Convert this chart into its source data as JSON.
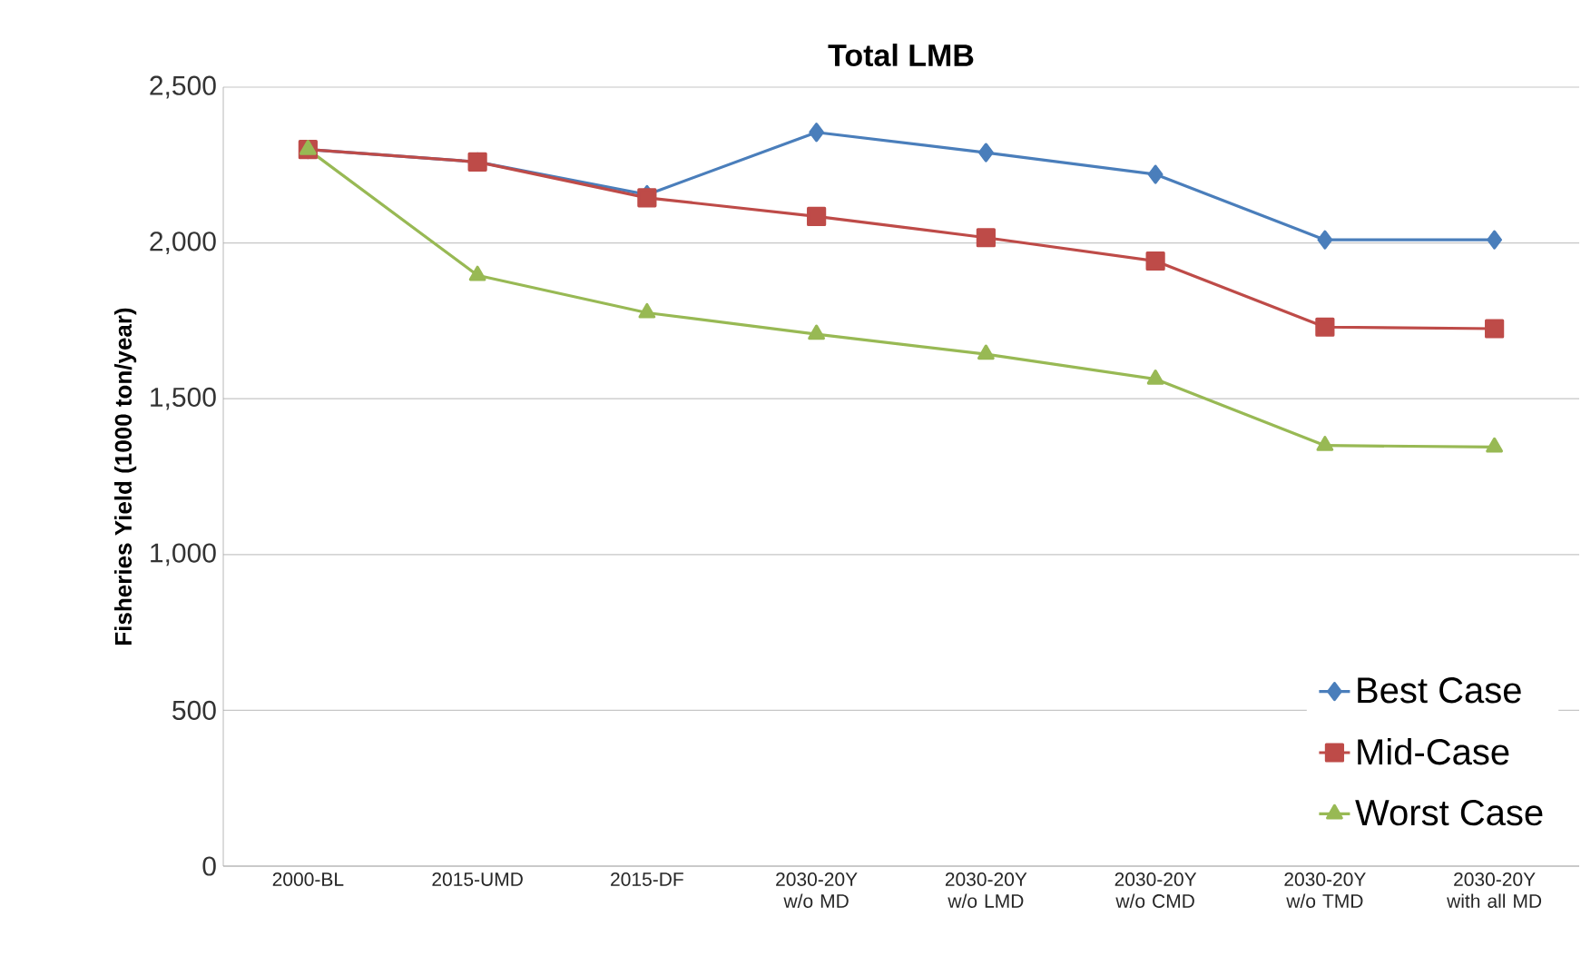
{
  "chart_data": {
    "type": "line",
    "title": "Total LMB",
    "ylabel": "Fisheries Yield (1000 ton/year)",
    "categories": [
      "2000-BL",
      "2015-UMD",
      "2015-DF",
      "2030-20Y w/o MD",
      "2030-20Y w/o LMD",
      "2030-20Y w/o CMD",
      "2030-20Y w/o TMD",
      "2030-20Y with all MD"
    ],
    "series": [
      {
        "name": "Best Case",
        "color": "#4a7ebb",
        "marker": "diamond",
        "values": [
          2300,
          2260,
          2155,
          2355,
          2290,
          2220,
          2010,
          2010
        ]
      },
      {
        "name": "Mid-Case",
        "color": "#be4b48",
        "marker": "square",
        "values": [
          2300,
          2260,
          2145,
          2085,
          2017,
          1942,
          1730,
          1725
        ]
      },
      {
        "name": "Worst Case",
        "color": "#98b954",
        "marker": "triangle",
        "values": [
          2300,
          1896,
          1776,
          1707,
          1643,
          1563,
          1350,
          1345
        ]
      }
    ],
    "ylim": [
      0,
      2500
    ],
    "yticks": [
      {
        "value": 0,
        "label": "0"
      },
      {
        "value": 500,
        "label": "500"
      },
      {
        "value": 1000,
        "label": "1,000"
      },
      {
        "value": 1500,
        "label": "1,500"
      },
      {
        "value": 2000,
        "label": "2,000"
      },
      {
        "value": 2500,
        "label": "2,500"
      }
    ],
    "grid": "y",
    "legend": "bottom right",
    "line_style": "solid"
  }
}
